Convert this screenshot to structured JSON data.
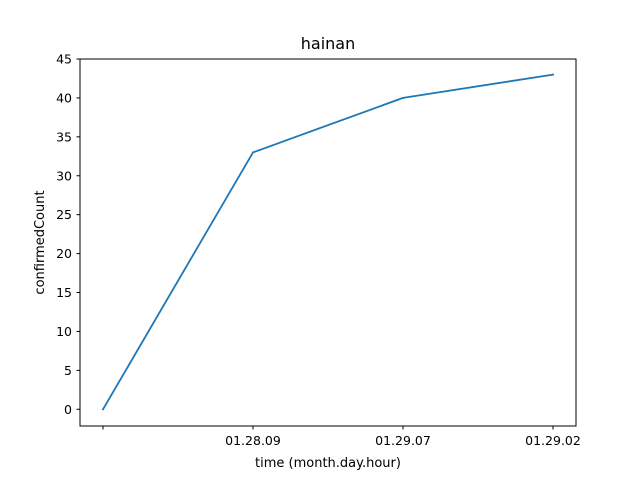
{
  "chart_data": {
    "type": "line",
    "title": "hainan",
    "xlabel": "time (month.day.hour)",
    "ylabel": "confirmedCount",
    "x": [
      "",
      "01.28.09",
      "01.29.07",
      "01.29.02"
    ],
    "series": [
      {
        "values": [
          0,
          33,
          40,
          43
        ],
        "color": "#1f77b4"
      }
    ],
    "ylim": [
      -2.15,
      45
    ],
    "yticks": [
      0,
      5,
      10,
      15,
      20,
      25,
      30,
      35,
      40,
      45
    ],
    "grid": false
  }
}
